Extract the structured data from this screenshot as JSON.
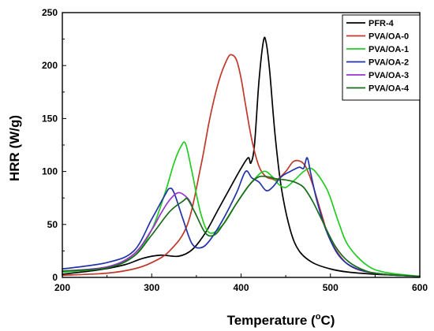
{
  "chart_data": {
    "type": "line",
    "xlabel_main": "Temperature (",
    "xlabel_sup": "o",
    "xlabel_end": "C)",
    "ylabel": "HRR (W/g)",
    "xlim": [
      200,
      600
    ],
    "ylim": [
      0,
      250
    ],
    "xticks": [
      200,
      300,
      400,
      500,
      600
    ],
    "yticks": [
      0,
      50,
      100,
      150,
      200,
      250
    ],
    "legend_position": "top-right",
    "series": [
      {
        "name": "PFR-4",
        "color": "#000000",
        "x": [
          200,
          240,
          270,
          290,
          310,
          330,
          345,
          360,
          375,
          390,
          400,
          408,
          411,
          415,
          420,
          425,
          428,
          432,
          438,
          445,
          455,
          465,
          480,
          500,
          520,
          550,
          600
        ],
        "y": [
          3,
          7,
          12,
          18,
          21,
          20,
          26,
          42,
          65,
          88,
          103,
          113,
          108,
          125,
          185,
          223,
          222,
          195,
          135,
          85,
          45,
          25,
          14,
          8,
          5,
          3,
          1
        ]
      },
      {
        "name": "PVA/OA-0",
        "color": "#c0392b",
        "x": [
          200,
          250,
          280,
          300,
          320,
          340,
          355,
          365,
          375,
          385,
          390,
          395,
          400,
          405,
          412,
          420,
          428,
          435,
          440,
          450,
          458,
          465,
          472,
          480,
          490,
          500,
          520,
          550,
          600
        ],
        "y": [
          2,
          4,
          8,
          14,
          25,
          50,
          105,
          150,
          185,
          207,
          210,
          205,
          188,
          163,
          130,
          105,
          95,
          93,
          92,
          100,
          109,
          110,
          105,
          88,
          60,
          35,
          12,
          4,
          1
        ]
      },
      {
        "name": "PVA/OA-1",
        "color": "#22cc22",
        "x": [
          200,
          250,
          280,
          300,
          315,
          325,
          333,
          338,
          345,
          355,
          365,
          380,
          395,
          410,
          425,
          435,
          442,
          450,
          460,
          470,
          478,
          485,
          495,
          500,
          510,
          520,
          540,
          560,
          600
        ],
        "y": [
          5,
          9,
          20,
          45,
          80,
          108,
          124,
          126,
          100,
          60,
          42,
          50,
          70,
          88,
          100,
          95,
          88,
          85,
          92,
          100,
          103,
          98,
          85,
          75,
          50,
          30,
          12,
          5,
          1
        ]
      },
      {
        "name": "PVA/OA-2",
        "color": "#2233aa",
        "x": [
          200,
          250,
          280,
          300,
          315,
          320,
          325,
          335,
          345,
          355,
          365,
          380,
          395,
          405,
          412,
          420,
          428,
          435,
          445,
          455,
          465,
          470,
          474,
          478,
          485,
          495,
          510,
          530,
          560,
          600
        ],
        "y": [
          8,
          14,
          25,
          55,
          78,
          84,
          80,
          55,
          32,
          28,
          35,
          55,
          80,
          100,
          94,
          90,
          82,
          85,
          95,
          100,
          104,
          103,
          113,
          98,
          72,
          45,
          20,
          8,
          3,
          1
        ]
      },
      {
        "name": "PVA/OA-3",
        "color": "#9933cc",
        "x": [
          200,
          250,
          280,
          300,
          310,
          320,
          330,
          340,
          345
        ],
        "y": [
          6,
          10,
          22,
          45,
          60,
          73,
          80,
          75,
          68
        ]
      },
      {
        "name": "PVA/OA-4",
        "color": "#1a6b1a",
        "x": [
          200,
          250,
          280,
          300,
          320,
          335,
          340,
          348,
          360,
          370,
          380,
          395,
          410,
          420,
          430,
          440,
          450,
          460,
          470,
          480,
          490,
          505,
          520,
          540,
          560,
          600
        ],
        "y": [
          6,
          9,
          20,
          40,
          62,
          72,
          74,
          62,
          42,
          40,
          50,
          70,
          88,
          95,
          95,
          93,
          92,
          90,
          85,
          72,
          55,
          30,
          15,
          6,
          3,
          1
        ]
      }
    ]
  }
}
